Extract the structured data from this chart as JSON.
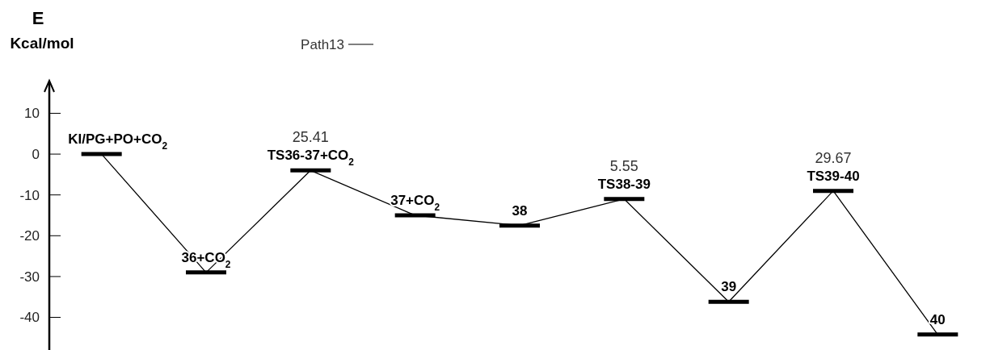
{
  "chart_data": {
    "type": "line",
    "ylabel": "E Kcal/mol",
    "categories": [
      "KI/PG+PO+CO$_{2}$",
      "36+CO$_{2}$",
      "TS36-37+CO$_{2}$",
      "37+CO$_{2}$",
      "38",
      "TS38-39",
      "39",
      "TS39-40",
      "40"
    ],
    "series": [
      {
        "name": "Path13",
        "color": "#000000",
        "values": [
          0,
          -29,
          -4,
          -15,
          -17.5,
          -11,
          -36.2,
          -9,
          -44.2
        ]
      }
    ],
    "ylim": [
      -48,
      18
    ],
    "yticks": [
      10,
      0,
      -10,
      -20,
      -30,
      -40
    ],
    "legend": "top",
    "line_style": "solid",
    "marker": "none",
    "annotations": [
      {
        "text": "25.41",
        "x": "TS36-37+CO$_{2}$",
        "y": -4
      },
      {
        "text": "5.55",
        "x": "TS38-39",
        "y": -11
      },
      {
        "text": "29.67",
        "x": "TS39-40",
        "y": -9
      }
    ]
  }
}
